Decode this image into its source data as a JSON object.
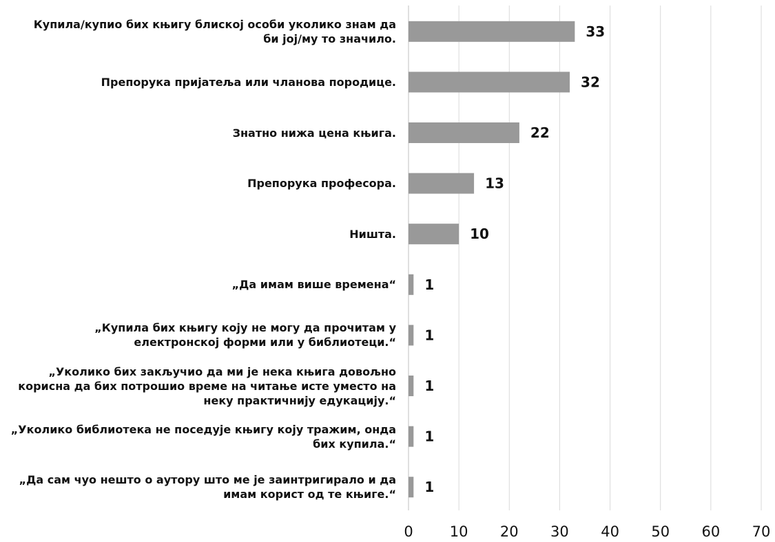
{
  "chart_data": {
    "type": "bar",
    "orientation": "horizontal",
    "title": "",
    "xlabel": "",
    "ylabel": "",
    "categories": [
      "Купила/купио бих књигу блиској особи уколико знам да\nби јој/му то значило.",
      "Препорука пријатеља или чланова породице.",
      "Знатно нижа цена књига.",
      "Препорука професора.",
      "Ништа.",
      "„Да имам више времена“",
      "„Купила бих књигу коју не могу да прочитам у\nелектронској форми или у библиотеци.“",
      "„Уколико бих закључио да ми је нека књига довољно\nкорисна да бих потрошио време на читање исте уместо на\nнеку практичнију едукацију.“",
      "„Уколико библиотека не поседује књигу коју тражим, онда\nбих купила.“",
      "„Да сам чуо нешто о аутору што ме је заинтригирало и да\nимам корист од те књиге.“"
    ],
    "values": [
      33,
      32,
      22,
      13,
      10,
      1,
      1,
      1,
      1,
      1
    ],
    "data_labels": [
      "33",
      "32",
      "22",
      "13",
      "10",
      "1",
      "1",
      "1",
      "1",
      "1"
    ],
    "xlim": [
      0,
      70
    ],
    "x_ticks": [
      "0",
      "10",
      "20",
      "30",
      "40",
      "50",
      "60",
      "70"
    ],
    "grid": "vertical",
    "legend": "none",
    "bar_color": "#999999"
  }
}
